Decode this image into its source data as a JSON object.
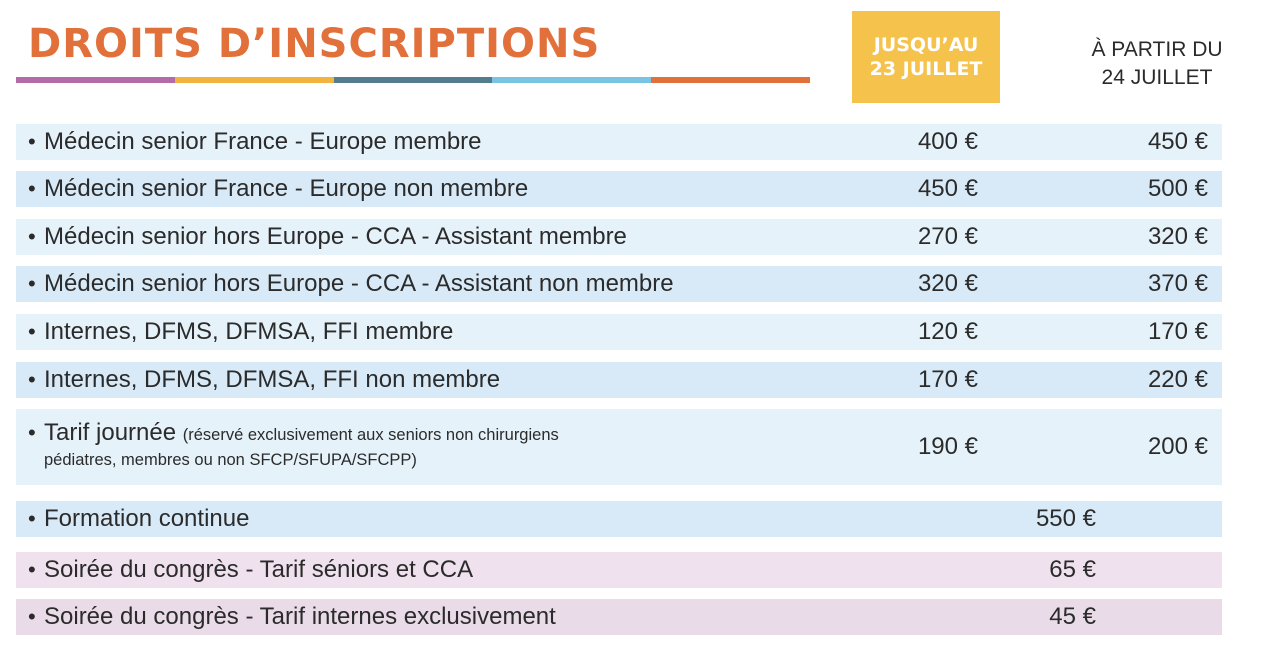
{
  "title": "DROITS D’INSCRIPTIONS",
  "colors": {
    "title": "#e2703a",
    "bar": [
      "#b56ba8",
      "#f2b33f",
      "#537d8c",
      "#79c4e3",
      "#e2703a"
    ],
    "badge_bg": "#f5c24c",
    "badge_text": "#ffffff",
    "row_blue_light": "#e6f2fa",
    "row_blue": "#d8eaf7",
    "row_pink": "#efe2ee",
    "row_pink_dark": "#eadbe9"
  },
  "columns": {
    "early_line1": "JUSQU’AU",
    "early_line2": "23 JUILLET",
    "late_line1": "À PARTIR DU",
    "late_line2": "24 JUILLET"
  },
  "bullet": "•",
  "rows": [
    {
      "label": "Médecin senior France - Europe membre",
      "early": "400 €",
      "late": "450 €"
    },
    {
      "label": "Médecin senior France - Europe non membre",
      "early": "450 €",
      "late": "500 €"
    },
    {
      "label": "Médecin senior hors Europe - CCA - Assistant membre",
      "early": "270 €",
      "late": "320 €"
    },
    {
      "label": "Médecin senior hors Europe - CCA - Assistant non membre",
      "early": "320 €",
      "late": "370 €"
    },
    {
      "label": "Internes, DFMS, DFMSA, FFI membre",
      "early": "120 €",
      "late": "170 €"
    },
    {
      "label": "Internes, DFMS, DFMSA, FFI non membre",
      "early": "170 €",
      "late": "220 €"
    },
    {
      "label": "Tarif journée",
      "note_line1": "(réservé exclusivement aux seniors non chirurgiens",
      "note_line2": "pédiatres, membres ou non SFCP/SFUPA/SFCPP)",
      "early": "190 €",
      "late": "200 €"
    },
    {
      "label": "Formation continue",
      "price": "550 €"
    },
    {
      "label": "Soirée du congrès - Tarif séniors et CCA",
      "price": "65 €"
    },
    {
      "label": "Soirée du congrès - Tarif internes exclusivement",
      "price": "45 €"
    }
  ]
}
